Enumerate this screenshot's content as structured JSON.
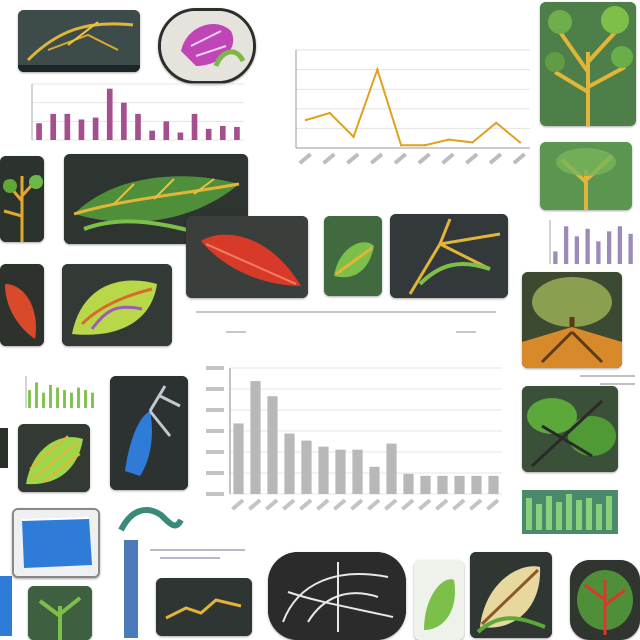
{
  "collage": {
    "palette": {
      "dark_bg": "#2a2f2a",
      "leaf_green": "#5da83a",
      "vein_yellow": "#e0b53a",
      "accent_red": "#d83a2a",
      "accent_blue": "#2f7bd8",
      "soil_orange": "#d88a2a"
    }
  },
  "line_chart": {
    "chart_data": {
      "type": "line",
      "title": "",
      "xlabel": "",
      "ylabel": "",
      "x": [
        1,
        2,
        3,
        4,
        5,
        6,
        7,
        8,
        9,
        10
      ],
      "series": [
        {
          "values": [
            20,
            25,
            8,
            56,
            2,
            2,
            6,
            4,
            18,
            4
          ]
        }
      ],
      "ylim": [
        0,
        70
      ],
      "grid": true,
      "line_color": "#e0a020"
    }
  },
  "bar_chart_main": {
    "chart_data": {
      "type": "bar",
      "title": "",
      "xlabel": "",
      "ylabel": "",
      "categories": [
        "",
        "",
        "",
        "",
        "",
        "",
        "",
        "",
        "",
        "",
        "",
        "",
        "",
        "",
        "",
        ""
      ],
      "values": [
        70,
        112,
        97,
        60,
        53,
        47,
        44,
        44,
        27,
        50,
        20,
        18,
        18,
        18,
        18,
        18
      ],
      "ylim": [
        0,
        125
      ],
      "grid": true,
      "bar_color": "#b8b8b8"
    }
  },
  "bar_chart_top": {
    "chart_data": {
      "type": "bar",
      "categories": [
        "",
        "",
        "",
        "",
        "",
        "",
        "",
        "",
        "",
        "",
        "",
        "",
        "",
        "",
        ""
      ],
      "values": [
        18,
        28,
        28,
        22,
        24,
        55,
        40,
        28,
        10,
        20,
        8,
        28,
        12,
        15,
        14
      ],
      "ylim": [
        0,
        60
      ],
      "grid": true,
      "bar_color": "#a4508f"
    }
  },
  "bar_chart_right": {
    "chart_data": {
      "type": "bar",
      "categories": [
        "",
        "",
        "",
        "",
        "",
        "",
        "",
        ""
      ],
      "values": [
        10,
        30,
        22,
        28,
        18,
        26,
        30,
        24
      ],
      "ylim": [
        0,
        35
      ],
      "bar_color": "#9c8ab8"
    }
  },
  "bar_chart_left": {
    "chart_data": {
      "type": "bar",
      "categories": [
        "",
        "",
        "",
        "",
        "",
        "",
        "",
        "",
        "",
        ""
      ],
      "values": [
        14,
        20,
        12,
        18,
        16,
        14,
        12,
        16,
        14,
        12
      ],
      "ylim": [
        0,
        25
      ],
      "bar_color": "#7cc04a"
    }
  }
}
